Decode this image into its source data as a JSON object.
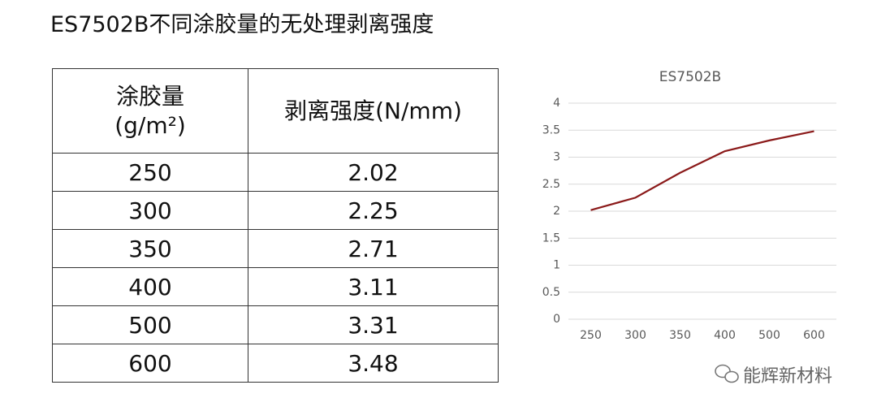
{
  "title": "ES7502B不同涂胶量的无处理剥离强度",
  "table": {
    "header": [
      "涂胶量\n(g/m²)",
      "剥离强度(N/mm)"
    ],
    "rows": [
      [
        250,
        2.02
      ],
      [
        300,
        2.25
      ],
      [
        350,
        2.71
      ],
      [
        400,
        3.11
      ],
      [
        500,
        3.31
      ],
      [
        600,
        3.48
      ]
    ]
  },
  "chart_data": {
    "type": "line",
    "title": "ES7502B",
    "categories": [
      "250",
      "300",
      "350",
      "400",
      "500",
      "600"
    ],
    "series": [
      {
        "color": "#8b1a1a",
        "values": [
          2.02,
          2.25,
          2.71,
          3.11,
          3.31,
          3.48
        ]
      }
    ],
    "ylim": [
      0,
      4
    ],
    "yticks": [
      0,
      0.5,
      1,
      1.5,
      2,
      2.5,
      3,
      3.5,
      4
    ],
    "grid": true
  },
  "watermark": "能辉新材料"
}
